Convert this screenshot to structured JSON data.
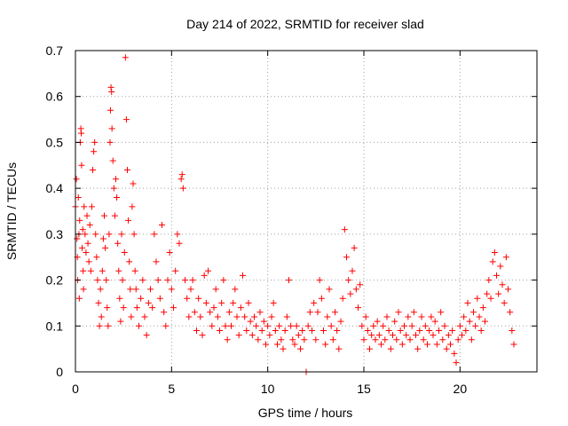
{
  "chart_data": {
    "type": "scatter",
    "title": "Day 214 of 2022, SRMTID for receiver slad",
    "xlabel": "GPS time / hours",
    "ylabel": "SRMTID / TECUs",
    "xlim": [
      0,
      24
    ],
    "ylim": [
      0,
      0.7
    ],
    "xticks": [
      0,
      5,
      10,
      15,
      20
    ],
    "xtick_labels": [
      "0",
      "5",
      "10",
      "15",
      "20"
    ],
    "yticks": [
      0,
      0.1,
      0.2,
      0.3,
      0.4,
      0.5,
      0.6,
      0.7
    ],
    "ytick_labels": [
      "0",
      "0.1",
      "0.2",
      "0.3",
      "0.4",
      "0.5",
      "0.6",
      "0.7"
    ],
    "grid": true,
    "marker": "+",
    "color": "#ff0000",
    "series": [
      {
        "name": "SRMTID",
        "points": [
          [
            0.0,
            0.36
          ],
          [
            0.05,
            0.42
          ],
          [
            0.08,
            0.29
          ],
          [
            0.1,
            0.25
          ],
          [
            0.12,
            0.2
          ],
          [
            0.15,
            0.38
          ],
          [
            0.18,
            0.3
          ],
          [
            0.2,
            0.16
          ],
          [
            0.22,
            0.33
          ],
          [
            0.25,
            0.5
          ],
          [
            0.28,
            0.53
          ],
          [
            0.3,
            0.52
          ],
          [
            0.32,
            0.45
          ],
          [
            0.35,
            0.27
          ],
          [
            0.38,
            0.31
          ],
          [
            0.4,
            0.22
          ],
          [
            0.42,
            0.18
          ],
          [
            0.45,
            0.36
          ],
          [
            0.5,
            0.3
          ],
          [
            0.55,
            0.26
          ],
          [
            0.6,
            0.34
          ],
          [
            0.65,
            0.28
          ],
          [
            0.7,
            0.24
          ],
          [
            0.75,
            0.32
          ],
          [
            0.8,
            0.22
          ],
          [
            0.85,
            0.36
          ],
          [
            0.9,
            0.44
          ],
          [
            0.95,
            0.48
          ],
          [
            1.0,
            0.5
          ],
          [
            1.05,
            0.3
          ],
          [
            1.1,
            0.25
          ],
          [
            1.15,
            0.2
          ],
          [
            1.2,
            0.15
          ],
          [
            1.25,
            0.1
          ],
          [
            1.3,
            0.18
          ],
          [
            1.35,
            0.12
          ],
          [
            1.4,
            0.22
          ],
          [
            1.45,
            0.29
          ],
          [
            1.5,
            0.34
          ],
          [
            1.55,
            0.27
          ],
          [
            1.6,
            0.2
          ],
          [
            1.65,
            0.14
          ],
          [
            1.7,
            0.1
          ],
          [
            1.75,
            0.3
          ],
          [
            1.8,
            0.5
          ],
          [
            1.82,
            0.57
          ],
          [
            1.85,
            0.62
          ],
          [
            1.88,
            0.61
          ],
          [
            1.9,
            0.53
          ],
          [
            1.95,
            0.46
          ],
          [
            2.0,
            0.4
          ],
          [
            2.05,
            0.34
          ],
          [
            2.1,
            0.42
          ],
          [
            2.15,
            0.38
          ],
          [
            2.2,
            0.28
          ],
          [
            2.25,
            0.22
          ],
          [
            2.3,
            0.16
          ],
          [
            2.35,
            0.11
          ],
          [
            2.4,
            0.3
          ],
          [
            2.45,
            0.2
          ],
          [
            2.5,
            0.14
          ],
          [
            2.55,
            0.26
          ],
          [
            2.6,
            0.685
          ],
          [
            2.65,
            0.55
          ],
          [
            2.7,
            0.44
          ],
          [
            2.75,
            0.33
          ],
          [
            2.8,
            0.24
          ],
          [
            2.85,
            0.18
          ],
          [
            2.9,
            0.12
          ],
          [
            2.95,
            0.36
          ],
          [
            3.0,
            0.41
          ],
          [
            3.05,
            0.3
          ],
          [
            3.1,
            0.22
          ],
          [
            3.15,
            0.18
          ],
          [
            3.2,
            0.14
          ],
          [
            3.3,
            0.1
          ],
          [
            3.4,
            0.16
          ],
          [
            3.5,
            0.2
          ],
          [
            3.6,
            0.12
          ],
          [
            3.7,
            0.08
          ],
          [
            3.8,
            0.15
          ],
          [
            3.9,
            0.18
          ],
          [
            4.0,
            0.14
          ],
          [
            4.1,
            0.3
          ],
          [
            4.2,
            0.24
          ],
          [
            4.3,
            0.2
          ],
          [
            4.4,
            0.16
          ],
          [
            4.5,
            0.32
          ],
          [
            4.6,
            0.13
          ],
          [
            4.7,
            0.1
          ],
          [
            4.8,
            0.2
          ],
          [
            4.9,
            0.26
          ],
          [
            5.0,
            0.18
          ],
          [
            5.1,
            0.14
          ],
          [
            5.2,
            0.22
          ],
          [
            5.3,
            0.3
          ],
          [
            5.4,
            0.28
          ],
          [
            5.5,
            0.42
          ],
          [
            5.55,
            0.43
          ],
          [
            5.6,
            0.4
          ],
          [
            5.7,
            0.2
          ],
          [
            5.8,
            0.16
          ],
          [
            5.9,
            0.12
          ],
          [
            6.0,
            0.18
          ],
          [
            6.1,
            0.2
          ],
          [
            6.2,
            0.13
          ],
          [
            6.3,
            0.09
          ],
          [
            6.4,
            0.16
          ],
          [
            6.5,
            0.12
          ],
          [
            6.6,
            0.08
          ],
          [
            6.7,
            0.21
          ],
          [
            6.8,
            0.15
          ],
          [
            6.9,
            0.22
          ],
          [
            7.0,
            0.13
          ],
          [
            7.1,
            0.1
          ],
          [
            7.2,
            0.14
          ],
          [
            7.3,
            0.18
          ],
          [
            7.4,
            0.12
          ],
          [
            7.5,
            0.09
          ],
          [
            7.6,
            0.15
          ],
          [
            7.7,
            0.2
          ],
          [
            7.8,
            0.1
          ],
          [
            7.9,
            0.07
          ],
          [
            8.0,
            0.13
          ],
          [
            8.1,
            0.1
          ],
          [
            8.2,
            0.15
          ],
          [
            8.3,
            0.18
          ],
          [
            8.4,
            0.12
          ],
          [
            8.5,
            0.08
          ],
          [
            8.6,
            0.14
          ],
          [
            8.7,
            0.21
          ],
          [
            8.8,
            0.12
          ],
          [
            8.9,
            0.09
          ],
          [
            9.0,
            0.15
          ],
          [
            9.1,
            0.11
          ],
          [
            9.2,
            0.08
          ],
          [
            9.3,
            0.12
          ],
          [
            9.4,
            0.1
          ],
          [
            9.5,
            0.07
          ],
          [
            9.6,
            0.13
          ],
          [
            9.7,
            0.09
          ],
          [
            9.8,
            0.11
          ],
          [
            9.9,
            0.06
          ],
          [
            10.0,
            0.1
          ],
          [
            10.1,
            0.08
          ],
          [
            10.2,
            0.12
          ],
          [
            10.3,
            0.15
          ],
          [
            10.4,
            0.09
          ],
          [
            10.5,
            0.06
          ],
          [
            10.6,
            0.1
          ],
          [
            10.7,
            0.07
          ],
          [
            10.8,
            0.05
          ],
          [
            10.9,
            0.09
          ],
          [
            11.0,
            0.12
          ],
          [
            11.1,
            0.2
          ],
          [
            11.2,
            0.1
          ],
          [
            11.3,
            0.07
          ],
          [
            11.4,
            0.06
          ],
          [
            11.5,
            0.1
          ],
          [
            11.6,
            0.08
          ],
          [
            11.7,
            0.05
          ],
          [
            11.8,
            0.09
          ],
          [
            11.9,
            0.07
          ],
          [
            12.0,
            0.0
          ],
          [
            12.1,
            0.1
          ],
          [
            12.2,
            0.13
          ],
          [
            12.3,
            0.09
          ],
          [
            12.4,
            0.15
          ],
          [
            12.5,
            0.07
          ],
          [
            12.6,
            0.13
          ],
          [
            12.7,
            0.2
          ],
          [
            12.8,
            0.16
          ],
          [
            12.9,
            0.09
          ],
          [
            13.0,
            0.06
          ],
          [
            13.1,
            0.12
          ],
          [
            13.2,
            0.18
          ],
          [
            13.3,
            0.1
          ],
          [
            13.4,
            0.07
          ],
          [
            13.5,
            0.13
          ],
          [
            13.6,
            0.09
          ],
          [
            13.7,
            0.05
          ],
          [
            13.8,
            0.11
          ],
          [
            13.9,
            0.16
          ],
          [
            14.0,
            0.31
          ],
          [
            14.1,
            0.25
          ],
          [
            14.2,
            0.2
          ],
          [
            14.3,
            0.17
          ],
          [
            14.4,
            0.22
          ],
          [
            14.5,
            0.27
          ],
          [
            14.6,
            0.18
          ],
          [
            14.7,
            0.14
          ],
          [
            14.8,
            0.19
          ],
          [
            14.9,
            0.1
          ],
          [
            15.0,
            0.07
          ],
          [
            15.1,
            0.12
          ],
          [
            15.2,
            0.09
          ],
          [
            15.3,
            0.05
          ],
          [
            15.4,
            0.08
          ],
          [
            15.5,
            0.1
          ],
          [
            15.6,
            0.07
          ],
          [
            15.7,
            0.11
          ],
          [
            15.8,
            0.08
          ],
          [
            15.9,
            0.06
          ],
          [
            16.0,
            0.1
          ],
          [
            16.1,
            0.07
          ],
          [
            16.2,
            0.12
          ],
          [
            16.3,
            0.09
          ],
          [
            16.4,
            0.05
          ],
          [
            16.5,
            0.08
          ],
          [
            16.6,
            0.11
          ],
          [
            16.7,
            0.07
          ],
          [
            16.8,
            0.13
          ],
          [
            16.9,
            0.09
          ],
          [
            17.0,
            0.06
          ],
          [
            17.1,
            0.1
          ],
          [
            17.2,
            0.08
          ],
          [
            17.3,
            0.12
          ],
          [
            17.4,
            0.07
          ],
          [
            17.5,
            0.1
          ],
          [
            17.6,
            0.13
          ],
          [
            17.7,
            0.08
          ],
          [
            17.8,
            0.05
          ],
          [
            17.9,
            0.09
          ],
          [
            18.0,
            0.12
          ],
          [
            18.1,
            0.07
          ],
          [
            18.2,
            0.1
          ],
          [
            18.3,
            0.06
          ],
          [
            18.4,
            0.09
          ],
          [
            18.5,
            0.12
          ],
          [
            18.6,
            0.08
          ],
          [
            18.7,
            0.11
          ],
          [
            18.8,
            0.06
          ],
          [
            18.9,
            0.09
          ],
          [
            19.0,
            0.13
          ],
          [
            19.1,
            0.07
          ],
          [
            19.2,
            0.1
          ],
          [
            19.3,
            0.05
          ],
          [
            19.4,
            0.08
          ],
          [
            19.5,
            0.06
          ],
          [
            19.6,
            0.09
          ],
          [
            19.7,
            0.04
          ],
          [
            19.8,
            0.02
          ],
          [
            19.9,
            0.07
          ],
          [
            20.0,
            0.1
          ],
          [
            20.1,
            0.08
          ],
          [
            20.2,
            0.12
          ],
          [
            20.3,
            0.09
          ],
          [
            20.4,
            0.15
          ],
          [
            20.5,
            0.11
          ],
          [
            20.6,
            0.07
          ],
          [
            20.7,
            0.13
          ],
          [
            20.8,
            0.1
          ],
          [
            20.9,
            0.16
          ],
          [
            21.0,
            0.12
          ],
          [
            21.1,
            0.09
          ],
          [
            21.2,
            0.14
          ],
          [
            21.3,
            0.11
          ],
          [
            21.4,
            0.17
          ],
          [
            21.5,
            0.2
          ],
          [
            21.6,
            0.16
          ],
          [
            21.7,
            0.24
          ],
          [
            21.8,
            0.26
          ],
          [
            21.9,
            0.21
          ],
          [
            22.0,
            0.17
          ],
          [
            22.1,
            0.23
          ],
          [
            22.2,
            0.19
          ],
          [
            22.3,
            0.15
          ],
          [
            22.4,
            0.25
          ],
          [
            22.5,
            0.18
          ],
          [
            22.6,
            0.13
          ],
          [
            22.7,
            0.09
          ],
          [
            22.8,
            0.06
          ]
        ]
      }
    ]
  }
}
